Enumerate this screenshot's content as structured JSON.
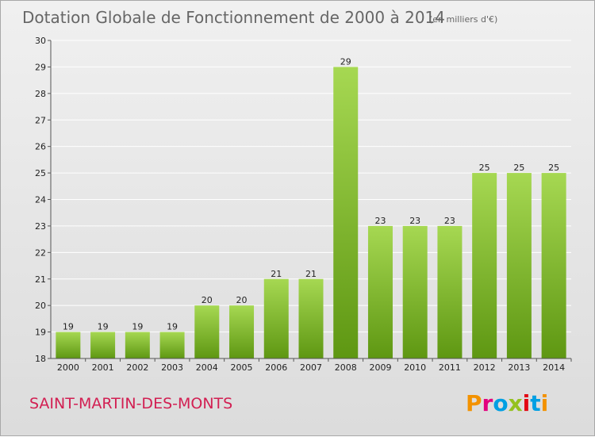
{
  "chart_data": {
    "type": "bar",
    "title": "Dotation Globale de Fonctionnement de 2000 à 2014",
    "subtitle": "(en milliers d'€)",
    "categories": [
      "2000",
      "2001",
      "2002",
      "2003",
      "2004",
      "2005",
      "2006",
      "2007",
      "2008",
      "2009",
      "2010",
      "2011",
      "2012",
      "2013",
      "2014"
    ],
    "values": [
      19,
      19,
      19,
      19,
      20,
      20,
      21,
      21,
      29,
      23,
      23,
      23,
      25,
      25,
      25
    ],
    "ylim": [
      18,
      30
    ],
    "yticks": [
      18,
      19,
      20,
      21,
      22,
      23,
      24,
      25,
      26,
      27,
      28,
      29,
      30
    ],
    "grid": true,
    "legend": "none",
    "colors": {
      "bar_light": "#a6d852",
      "bar_dark": "#5e9712",
      "grid": "#ffffff",
      "axis": "#555555"
    }
  },
  "footer": {
    "commune": "SAINT-MARTIN-DES-MONTS",
    "brand": "Proxiti",
    "brand_colors": [
      "#f39200",
      "#e3007e",
      "#009fe3",
      "#95c11f",
      "#e30613",
      "#009fe3",
      "#f39200"
    ]
  }
}
